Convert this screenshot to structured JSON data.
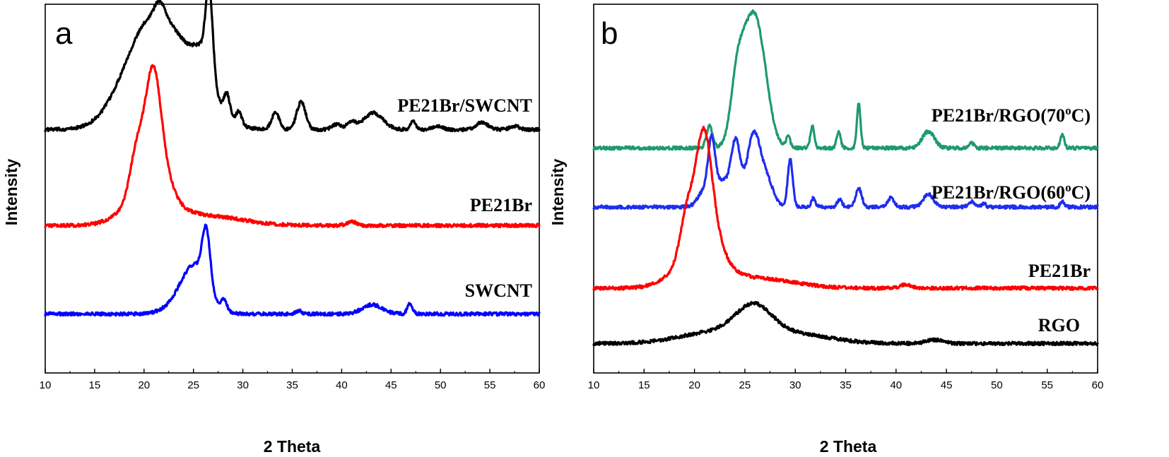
{
  "chart_data": [
    {
      "type": "line",
      "panel": "a",
      "xlabel": "2 Theta",
      "ylabel": "Intensity",
      "xlim": [
        10,
        60
      ],
      "xticks": [
        10,
        15,
        20,
        25,
        30,
        35,
        40,
        45,
        50,
        55,
        60
      ],
      "yticks": [],
      "ylim": [
        0,
        100
      ],
      "grid": false,
      "legend": "inline labels right of each curve",
      "series": [
        {
          "name": "PE21Br/SWCNT",
          "color": "#000000",
          "offset": 66,
          "peaks": [
            [
              20.5,
              27,
              2.6
            ],
            [
              21.6,
              4,
              0.5
            ],
            [
              24.5,
              13,
              2.4
            ],
            [
              26.6,
              22,
              0.35
            ],
            [
              26.0,
              8,
              0.9
            ],
            [
              28.4,
              6,
              0.3
            ],
            [
              29.6,
              3.5,
              0.3
            ],
            [
              33.3,
              4.5,
              0.4
            ],
            [
              35.9,
              7.5,
              0.45
            ],
            [
              39.5,
              1.5,
              0.5
            ],
            [
              41.0,
              2,
              0.4
            ],
            [
              43.2,
              4.5,
              1.0
            ],
            [
              47.2,
              2.5,
              0.25
            ],
            [
              49.7,
              1,
              0.5
            ],
            [
              54.2,
              2,
              0.6
            ],
            [
              57.5,
              1,
              0.5
            ]
          ]
        },
        {
          "name": "PE21Br",
          "color": "#ff0000",
          "offset": 40,
          "peaks": [
            [
              20.9,
              30,
              0.75
            ],
            [
              19.3,
              13,
              0.7
            ],
            [
              22.0,
              6,
              0.9
            ],
            [
              20.5,
              9,
              2.3
            ],
            [
              26.5,
              2.5,
              3.5
            ],
            [
              41.0,
              1,
              0.5
            ]
          ]
        },
        {
          "name": "SWCNT",
          "color": "#0000ff",
          "offset": 16,
          "peaks": [
            [
              26.3,
              15,
              0.4
            ],
            [
              25.2,
              11,
              1.3
            ],
            [
              24.0,
              3,
              1.6
            ],
            [
              28.1,
              3,
              0.3
            ],
            [
              35.7,
              0.8,
              0.3
            ],
            [
              43.1,
              2.5,
              1.0
            ],
            [
              46.9,
              3,
              0.25
            ]
          ]
        }
      ]
    },
    {
      "type": "line",
      "panel": "b",
      "xlabel": "2 Theta",
      "ylabel": "Intensity",
      "xlim": [
        10,
        60
      ],
      "xticks": [
        10,
        15,
        20,
        25,
        30,
        35,
        40,
        45,
        50,
        55,
        60
      ],
      "yticks": [],
      "ylim": [
        0,
        100
      ],
      "grid": false,
      "legend": "inline labels right of each curve",
      "series": [
        {
          "name": "PE21Br/RGO(70ºC)",
          "label_main": "PE21Br/RGO(70",
          "label_sup": "o",
          "label_tail": "C)",
          "color": "#1e9a6e",
          "offset": 61,
          "peaks": [
            [
              25.7,
              34,
              1.1
            ],
            [
              24.2,
              12,
              0.6
            ],
            [
              26.8,
              6,
              0.8
            ],
            [
              21.5,
              6,
              0.3
            ],
            [
              29.3,
              3,
              0.2
            ],
            [
              31.7,
              6,
              0.2
            ],
            [
              34.3,
              4.5,
              0.2
            ],
            [
              36.3,
              12,
              0.18
            ],
            [
              43.2,
              4.5,
              0.6
            ],
            [
              47.5,
              1.5,
              0.2
            ],
            [
              56.5,
              3.5,
              0.2
            ]
          ]
        },
        {
          "name": "PE21Br/RGO(60ºC)",
          "label_main": "PE21Br/RGO(60",
          "label_sup": "o",
          "label_tail": "C)",
          "color": "#1f2df0",
          "offset": 45,
          "peaks": [
            [
              21.7,
              15,
              0.35
            ],
            [
              20.9,
              4,
              0.6
            ],
            [
              24.1,
              16,
              0.45
            ],
            [
              25.9,
              20,
              0.7
            ],
            [
              22.8,
              7,
              0.8
            ],
            [
              27.3,
              6,
              0.6
            ],
            [
              29.5,
              13,
              0.25
            ],
            [
              31.8,
              2.5,
              0.2
            ],
            [
              34.4,
              2,
              0.25
            ],
            [
              36.3,
              5,
              0.3
            ],
            [
              39.5,
              2.5,
              0.3
            ],
            [
              43.2,
              3.5,
              0.5
            ],
            [
              47.5,
              1.5,
              0.3
            ],
            [
              48.7,
              1,
              0.2
            ],
            [
              56.5,
              1.5,
              0.2
            ]
          ]
        },
        {
          "name": "PE21Br",
          "label_main": "PE21Br",
          "color": "#ff0000",
          "offset": 23,
          "peaks": [
            [
              20.9,
              30,
              0.75
            ],
            [
              19.3,
              13,
              0.7
            ],
            [
              22.0,
              6,
              0.9
            ],
            [
              20.5,
              9,
              2.3
            ],
            [
              26.5,
              2.5,
              3.5
            ],
            [
              41.0,
              1,
              0.5
            ]
          ]
        },
        {
          "name": "RGO",
          "label_main": "RGO",
          "color": "#000000",
          "offset": 8,
          "peaks": [
            [
              25.9,
              8,
              1.8
            ],
            [
              22.0,
              3,
              3.5
            ],
            [
              30.0,
              2.5,
              3.5
            ],
            [
              43.8,
              1,
              0.8
            ]
          ]
        }
      ]
    }
  ]
}
